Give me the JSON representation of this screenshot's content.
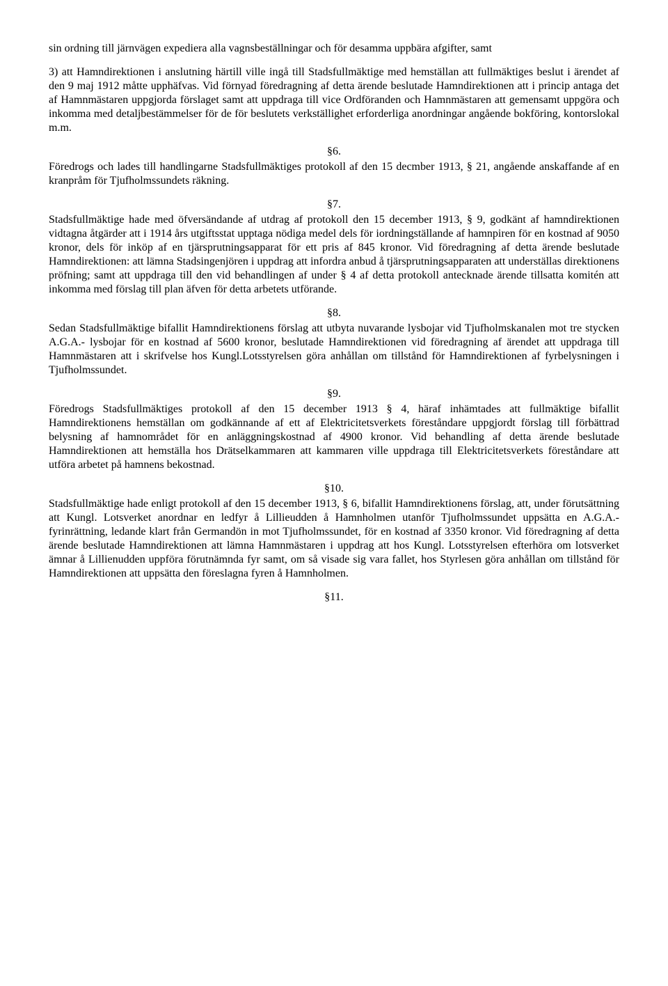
{
  "intro": "sin ordning till järnvägen expediera alla vagnsbeställningar och för desamma uppbära afgifter, samt",
  "item3": "3) att Hamndirektionen i anslutning härtill ville ingå till Stadsfullmäktige med hemställan att fullmäktiges beslut i ärendet af den 9 maj 1912 måtte upphäfvas. Vid förnyad föredragning af detta ärende beslutade Hamndirektionen att i princip antaga det af Hamnmästaren uppgjorda förslaget samt att uppdraga till vice Ordföranden och Hamnmästaren att gemensamt uppgöra och inkomma med detaljbestämmelser för de för beslutets verkställighet erforderliga anordningar angående bokföring, kontorslokal m.m.",
  "sections": {
    "s6": {
      "num": "§6.",
      "text": "Föredrogs och lades till handlingarne Stadsfullmäktiges protokoll af den 15 decmber 1913, § 21, angående anskaffande af en kranpråm för Tjufholmssundets räkning."
    },
    "s7": {
      "num": "§7.",
      "text": "Stadsfullmäktige hade med öfversändande af utdrag af protokoll den 15 december 1913, § 9, godkänt af hamndirektionen vidtagna åtgärder att i 1914 års utgiftsstat upptaga nödiga medel dels för iordningställande af hamnpiren för en kostnad af 9050 kronor, dels för inköp af en tjärsprutningsapparat för ett pris af 845 kronor. Vid föredragning af detta ärende beslutade Hamndirektionen: att lämna Stadsingenjören i uppdrag att infordra anbud å tjärsprutningsapparaten att underställas direktionens pröfning; samt att uppdraga till den vid behandlingen af under § 4 af detta protokoll antecknade ärende tillsatta komitén att inkomma med förslag till plan äfven för detta arbetets utförande."
    },
    "s8": {
      "num": "§8.",
      "text": "Sedan Stadsfullmäktige bifallit Hamndirektionens förslag att utbyta nuvarande lysbojar vid Tjufholmskanalen mot tre stycken A.G.A.- lysbojar för en kostnad af 5600 kronor, beslutade Hamndirektionen vid föredragning af ärendet att uppdraga till Hamnmästaren att i skrifvelse hos Kungl.Lotsstyrelsen göra anhållan om tillstånd för Hamndirektionen af fyrbelysningen i Tjufholmssundet."
    },
    "s9": {
      "num": "§9.",
      "text": "Föredrogs Stadsfullmäktiges protokoll af den 15 december 1913 § 4, häraf inhämtades att fullmäktige bifallit Hamndirektionens hemställan om godkännande af ett af Elektricitetsverkets föreståndare uppgjordt förslag till förbättrad belysning af hamnområdet för en anläggningskostnad af 4900 kronor. Vid behandling af detta ärende beslutade Hamndirektionen att hemställa hos Drätselkammaren att kammaren ville uppdraga till Elektricitetsverkets föreståndare att utföra arbetet på hamnens bekostnad."
    },
    "s10": {
      "num": "§10.",
      "text": "Stadsfullmäktige hade enligt protokoll af den 15 december 1913, § 6, bifallit Hamndirektionens förslag, att, under förutsättning att Kungl. Lotsverket anordnar en ledfyr å Lillieudden å Hamnholmen utanför Tjufholmssundet uppsätta en A.G.A.-fyrinrättning, ledande klart från Germandön in mot Tjufholmssundet, för en kostnad af 3350 kronor. Vid föredragning af detta ärende beslutade Hamndirektionen att lämna Hamnmästaren i uppdrag att hos Kungl. Lotsstyrelsen efterhöra om lotsverket ämnar å Lillienudden uppföra förutnämnda fyr samt, om så visade sig vara fallet, hos Styrlesen göra anhållan om tillstånd för Hamndirektionen att uppsätta den föreslagna fyren å Hamnholmen."
    },
    "s11": {
      "num": "§11."
    }
  }
}
